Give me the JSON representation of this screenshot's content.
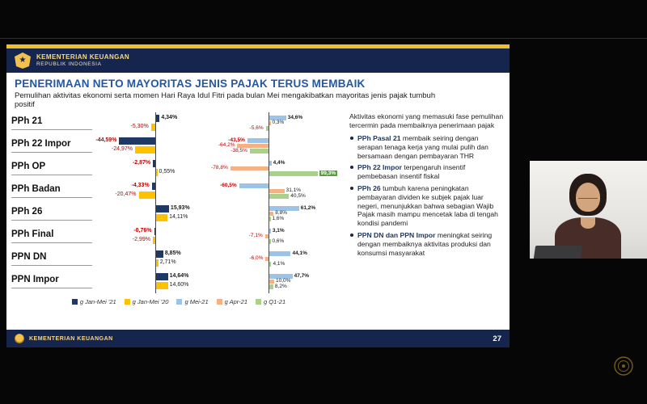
{
  "header": {
    "line1": "KEMENTERIAN KEUANGAN",
    "line2": "REPUBLIK INDONESIA"
  },
  "slide": {
    "title": "PENERIMAAN NETO MAYORITAS JENIS PAJAK TERUS MEMBAIK",
    "subtitle": "Pemulihan aktivitas ekonomi serta momen Hari Raya Idul Fitri pada bulan Mei mengakibatkan mayoritas jenis pajak tumbuh positif",
    "footer_label": "KEMENTERIAN KEUANGAN",
    "page_number": "27"
  },
  "panel": {
    "intro": "Aktivitas ekonomi yang memasuki fase pemulihan tercermin pada membaiknya penerimaan pajak",
    "bullets": [
      {
        "lead": "PPh Pasal 21",
        "text": "membaik seiring dengan serapan tenaga kerja yang mulai pulih dan bersamaan dengan pembayaran THR"
      },
      {
        "lead": "PPh 22 Impor",
        "text": "terpengaruh insentif pembebasan insentif fiskal"
      },
      {
        "lead": "PPh 26",
        "text": "tumbuh karena peningkatan pembayaran dividen ke subjek pajak luar negeri, menunjukkan bahwa sebagian Wajib Pajak masih mampu mencetak laba di tengah kondisi pandemi"
      },
      {
        "lead": "PPN DN dan PPN Impor",
        "text": "meningkat seiring dengan membaiknya aktivitas produksi dan konsumsi masyarakat"
      }
    ]
  },
  "chart_data": {
    "type": "bar",
    "orientation": "horizontal",
    "unit": "% growth (yoy)",
    "categories": [
      "PPh 21",
      "PPh 22 Impor",
      "PPh OP",
      "PPh Badan",
      "PPh 26",
      "PPh Final",
      "PPN DN",
      "PPN Impor"
    ],
    "series": [
      {
        "name": "g Jan-Mei '21",
        "color": "#1F3864",
        "chart": 1,
        "bold_labels": true,
        "values": [
          4.34,
          -44.59,
          -2.87,
          -4.33,
          15.93,
          -0.76,
          8.85,
          14.64
        ],
        "labels": [
          "4,34%",
          "-44,59%",
          "-2,87%",
          "-4,33%",
          "15,93%",
          "-0,76%",
          "8,85%",
          "14,64%"
        ]
      },
      {
        "name": "g Jan-Mei '20",
        "color": "#FFC000",
        "chart": 1,
        "bold_labels": false,
        "values": [
          -5.3,
          -24.97,
          0.55,
          -20.47,
          14.11,
          -2.99,
          2.71,
          14.6
        ],
        "labels": [
          "-5,30%",
          "-24,97%",
          "0,55%",
          "-20,47%",
          "14,11%",
          "-2,99%",
          "2,71%",
          "14,60%"
        ]
      },
      {
        "name": "g Mei-21",
        "color": "#9DC3E6",
        "chart": 2,
        "bold_labels": true,
        "values": [
          34.6,
          -43.5,
          4.4,
          -60.5,
          61.2,
          3.1,
          44.1,
          47.7
        ],
        "labels": [
          "34,6%",
          "-43,5%",
          "4,4%",
          "-60,5%",
          "61,2%",
          "3,1%",
          "44,1%",
          "47,7%"
        ]
      },
      {
        "name": "g Apr-21",
        "color": "#F4B183",
        "chart": 2,
        "bold_labels": false,
        "values": [
          0.3,
          -64.2,
          -78.8,
          31.1,
          8.8,
          -7.1,
          -6.0,
          10.0
        ],
        "labels": [
          "0,3%",
          "-64,2%",
          "-78,8%",
          "31,1%",
          "8,8%",
          "-7,1%",
          "-6,0%",
          "10,0%"
        ]
      },
      {
        "name": "g Q1-21",
        "color": "#A9D18E",
        "chart": 2,
        "bold_labels": false,
        "values": [
          -5.6,
          -38.5,
          99.3,
          40.5,
          1.6,
          0.6,
          4.1,
          8.2
        ],
        "labels": [
          "-5,6%",
          "-38,5%",
          "99,3%",
          "40,5%",
          "1,6%",
          "0,6%",
          "4,1%",
          "8,2%"
        ]
      }
    ],
    "highlight": {
      "category": "PPh OP",
      "series": "g Q1-21"
    },
    "legend_position": "bottom",
    "negative_label_color": "#C00000"
  },
  "colors": {
    "slide_navy": "#16254E",
    "gold": "#EFBE2C",
    "title_blue": "#2457A4"
  }
}
